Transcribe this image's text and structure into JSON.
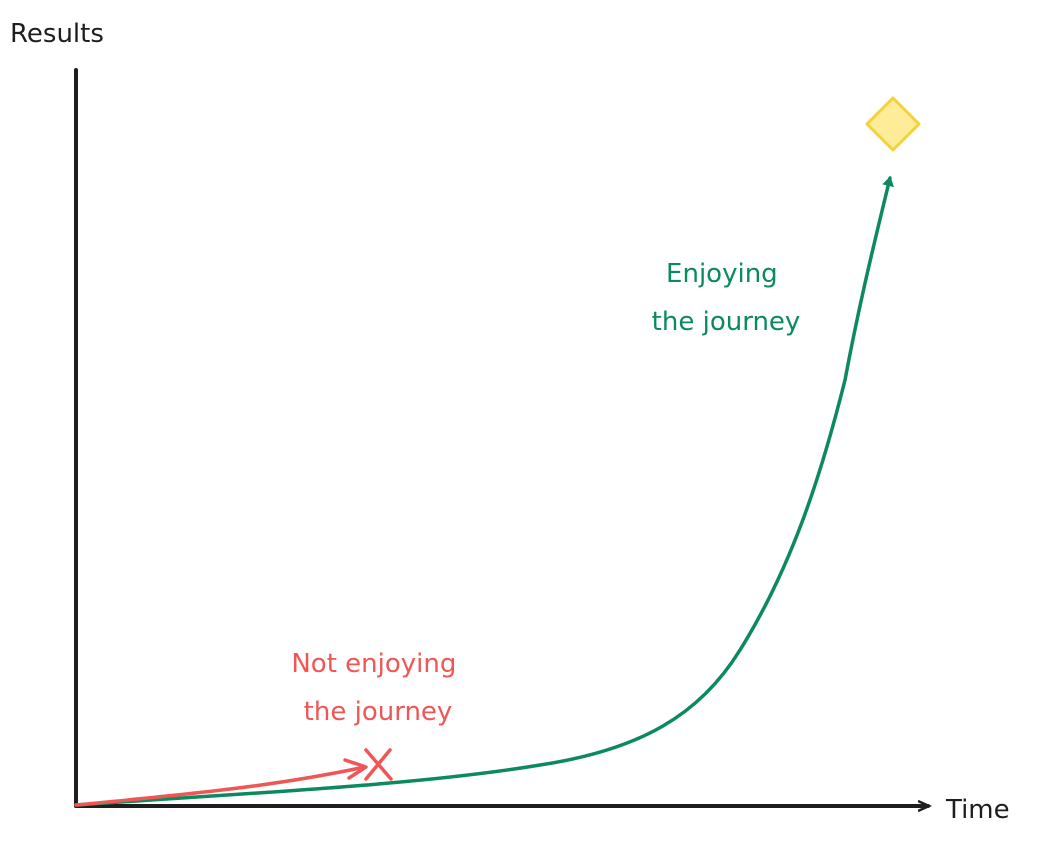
{
  "axes": {
    "y_label": "Results",
    "x_label": "Time"
  },
  "annotations": [
    {
      "lines": [
        "Enjoying",
        "the journey"
      ]
    },
    {
      "lines": [
        "Not enjoying",
        "the journey"
      ]
    }
  ]
}
